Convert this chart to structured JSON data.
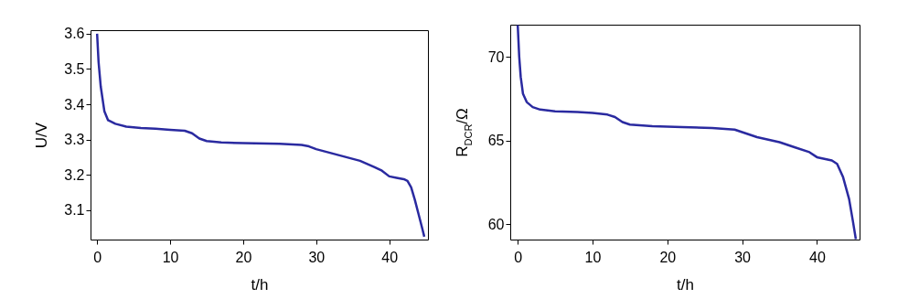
{
  "chart_data": [
    {
      "type": "line",
      "xlabel": "t/h",
      "ylabel": "U/V",
      "xlim": [
        -0.9,
        45.3
      ],
      "ylim": [
        3.017,
        3.61
      ],
      "xticks": [
        0,
        10,
        20,
        30,
        40
      ],
      "yticks": [
        3.1,
        3.2,
        3.3,
        3.4,
        3.5,
        3.6
      ],
      "grid": false,
      "marker": "none",
      "line_style": "solid",
      "series": [
        {
          "color": "#2a2aa0",
          "x": [
            0,
            0.2,
            0.5,
            1.0,
            1.5,
            2.5,
            4,
            6,
            8,
            10,
            12,
            13,
            14,
            15,
            17,
            20,
            25,
            28,
            29,
            30,
            32,
            34,
            36,
            38,
            39,
            40,
            41,
            42,
            42.5,
            43,
            43.5,
            44,
            44.5,
            44.8
          ],
          "values": [
            3.6,
            3.52,
            3.45,
            3.38,
            3.355,
            3.345,
            3.337,
            3.333,
            3.331,
            3.328,
            3.325,
            3.318,
            3.303,
            3.296,
            3.292,
            3.29,
            3.288,
            3.285,
            3.281,
            3.273,
            3.262,
            3.251,
            3.24,
            3.222,
            3.212,
            3.196,
            3.192,
            3.188,
            3.183,
            3.165,
            3.13,
            3.09,
            3.05,
            3.025
          ]
        }
      ]
    },
    {
      "type": "line",
      "xlabel": "t/h",
      "ylabel": "R$_{DCR}$/Ω",
      "xlim": [
        -1.0,
        45.7
      ],
      "ylim": [
        59.07,
        71.93
      ],
      "xticks": [
        0,
        10,
        20,
        30,
        40
      ],
      "yticks": [
        60,
        65,
        70
      ],
      "grid": false,
      "marker": "none",
      "line_style": "solid",
      "series": [
        {
          "color": "#2a2aa0",
          "x": [
            0,
            0.2,
            0.4,
            0.7,
            1.2,
            2,
            3,
            5,
            8,
            10,
            12,
            13,
            14,
            15,
            18,
            22,
            26,
            29,
            30,
            32,
            35,
            37,
            39,
            40,
            42,
            42.7,
            43.5,
            44.3,
            44.8,
            45.2
          ],
          "values": [
            71.9,
            70,
            68.8,
            67.8,
            67.3,
            67.0,
            66.85,
            66.75,
            66.7,
            66.65,
            66.55,
            66.4,
            66.1,
            65.95,
            65.85,
            65.8,
            65.75,
            65.65,
            65.5,
            65.2,
            64.9,
            64.6,
            64.3,
            64.0,
            63.8,
            63.6,
            62.8,
            61.5,
            60.2,
            59.1
          ]
        }
      ]
    }
  ]
}
